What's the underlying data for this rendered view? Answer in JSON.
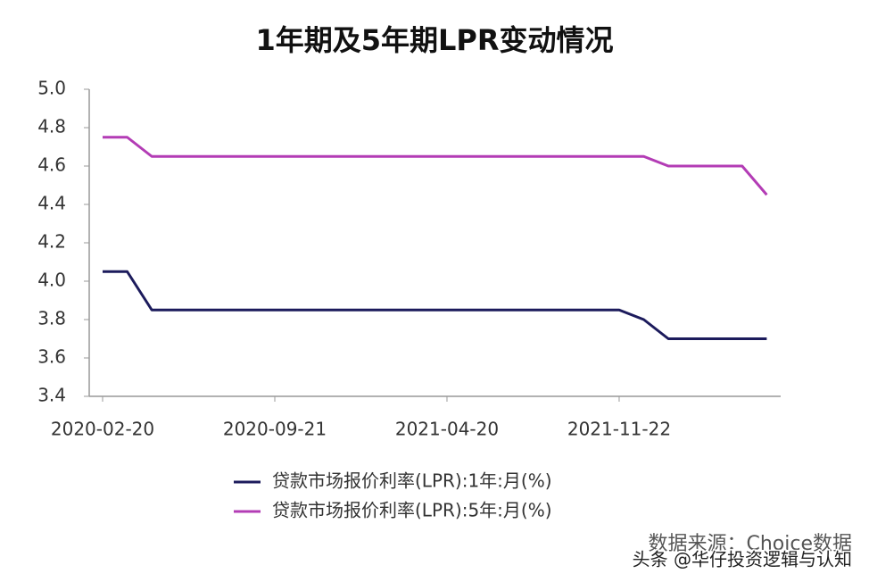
{
  "chart_data": {
    "type": "line",
    "title": "1年期及5年期LPR变动情况",
    "categories": [
      "2020-02-20",
      null,
      null,
      null,
      null,
      null,
      null,
      "2020-09-21",
      null,
      null,
      null,
      null,
      null,
      null,
      "2021-04-20",
      null,
      null,
      null,
      null,
      null,
      null,
      "2021-11-22",
      null,
      null,
      null,
      null,
      null,
      null
    ],
    "series": [
      {
        "name": "贷款市场报价利率(LPR):1年:月(%)",
        "color": "#1c1b5c",
        "values": [
          4.05,
          4.05,
          3.85,
          3.85,
          3.85,
          3.85,
          3.85,
          3.85,
          3.85,
          3.85,
          3.85,
          3.85,
          3.85,
          3.85,
          3.85,
          3.85,
          3.85,
          3.85,
          3.85,
          3.85,
          3.85,
          3.85,
          3.8,
          3.7,
          3.7,
          3.7,
          3.7,
          3.7
        ]
      },
      {
        "name": "贷款市场报价利率(LPR):5年:月(%)",
        "color": "#b33cb5",
        "values": [
          4.75,
          4.75,
          4.65,
          4.65,
          4.65,
          4.65,
          4.65,
          4.65,
          4.65,
          4.65,
          4.65,
          4.65,
          4.65,
          4.65,
          4.65,
          4.65,
          4.65,
          4.65,
          4.65,
          4.65,
          4.65,
          4.65,
          4.65,
          4.6,
          4.6,
          4.6,
          4.6,
          4.45
        ]
      }
    ],
    "ylim": [
      3.4,
      5.0
    ],
    "yticks": [
      3.4,
      3.6,
      3.8,
      {
        "value": 4.0,
        "label": "4.0"
      },
      4.2,
      4.4,
      4.6,
      4.8,
      {
        "value": 5.0,
        "label": "5.0"
      }
    ],
    "source": "数据来源：Choice数据",
    "watermark": "头条 @华仔投资逻辑与认知"
  }
}
